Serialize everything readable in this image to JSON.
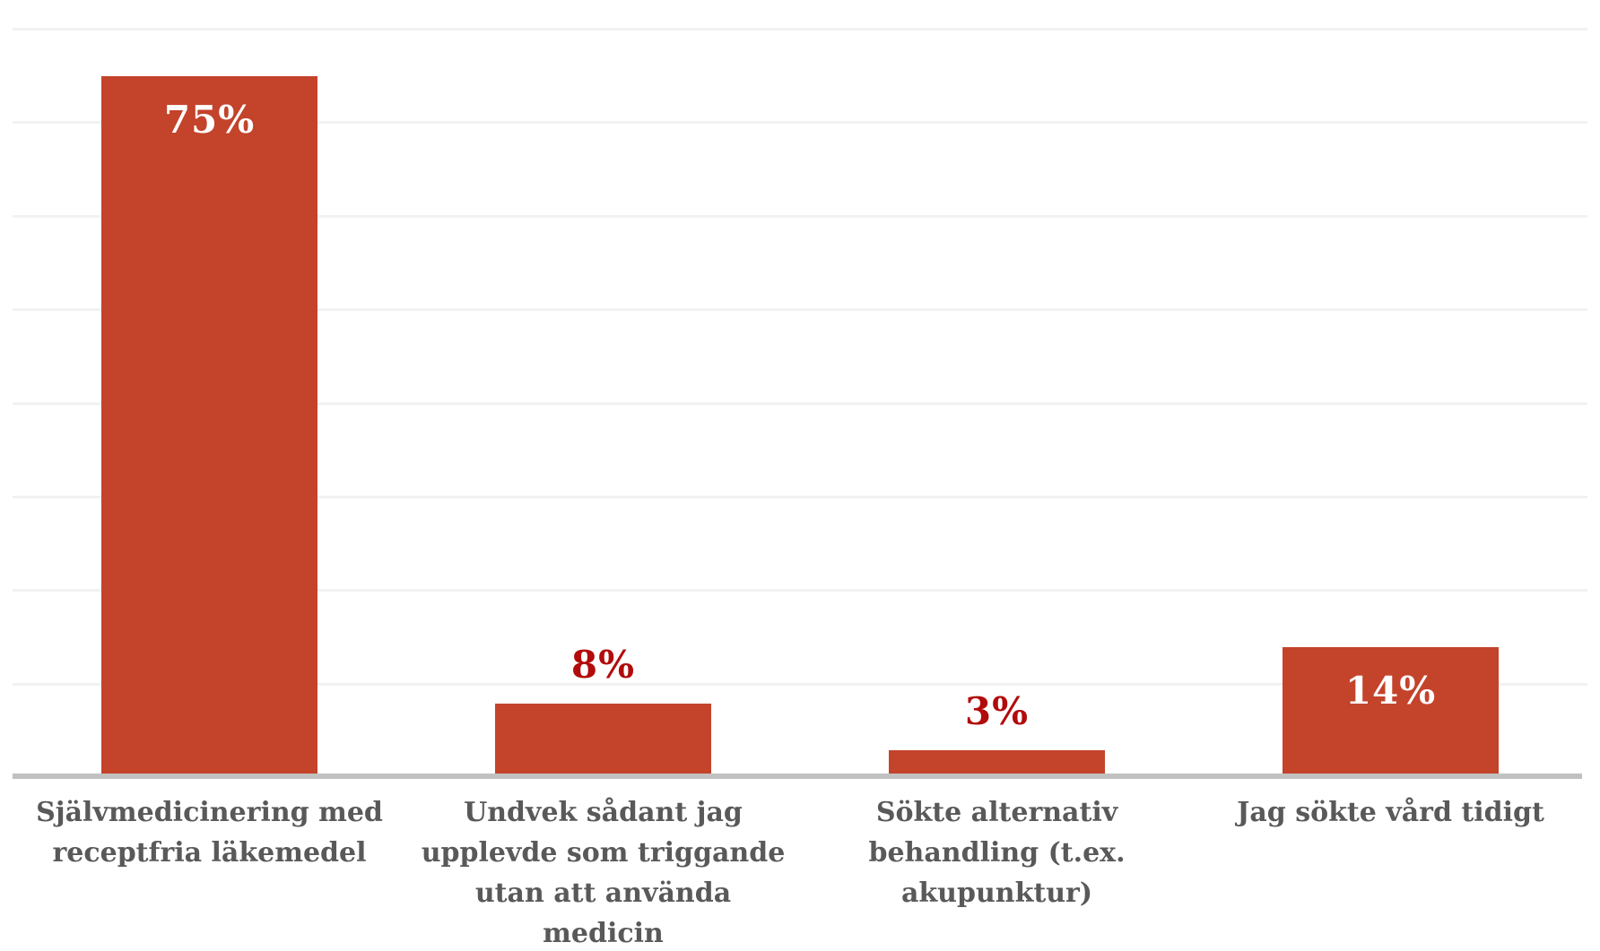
{
  "chart_data": {
    "type": "bar",
    "title": "",
    "xlabel": "",
    "ylabel": "",
    "categories": [
      "Självmedicinering med\nreceptfria läkemedel",
      "Undvek sådant jag\nupplevde som triggande\nutan att använda\nmedicin",
      "Sökte alternativ\nbehandling (t.ex.\nakupunktur)",
      "Jag sökte vård tidigt"
    ],
    "values": [
      75,
      8,
      3,
      14
    ],
    "value_labels": [
      "75%",
      "8%",
      "3%",
      "14%"
    ],
    "value_label_placement": [
      "inside",
      "above",
      "above",
      "inside"
    ],
    "ylim": [
      0,
      80
    ],
    "gridline_step": 10,
    "grid": true,
    "legend": "none",
    "colors": {
      "bar": "#C3432B",
      "value_label_inside": "#FFFFFF",
      "value_label_above": "#B20B0B",
      "category_label": "#595959",
      "axis_line": "#C1C1C1",
      "gridline": "#F2F2F2",
      "background": "#FFFFFF"
    }
  }
}
